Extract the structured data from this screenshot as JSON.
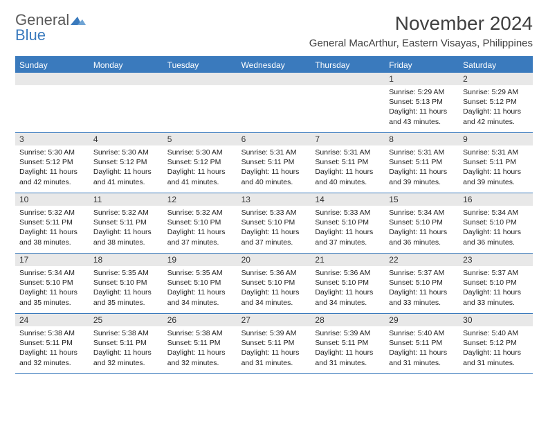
{
  "logo": {
    "text1": "General",
    "text2": "Blue"
  },
  "title": "November 2024",
  "subtitle": "General MacArthur, Eastern Visayas, Philippines",
  "day_header_bg": "#3a7abd",
  "day_header_fg": "#ffffff",
  "daynum_bg": "#e8e8e8",
  "border_color": "#3a7abd",
  "day_names": [
    "Sunday",
    "Monday",
    "Tuesday",
    "Wednesday",
    "Thursday",
    "Friday",
    "Saturday"
  ],
  "weeks": [
    [
      {
        "n": "",
        "empty": true
      },
      {
        "n": "",
        "empty": true
      },
      {
        "n": "",
        "empty": true
      },
      {
        "n": "",
        "empty": true
      },
      {
        "n": "",
        "empty": true
      },
      {
        "n": "1",
        "sunrise": "5:29 AM",
        "sunset": "5:13 PM",
        "daylight": "11 hours and 43 minutes."
      },
      {
        "n": "2",
        "sunrise": "5:29 AM",
        "sunset": "5:12 PM",
        "daylight": "11 hours and 42 minutes."
      }
    ],
    [
      {
        "n": "3",
        "sunrise": "5:30 AM",
        "sunset": "5:12 PM",
        "daylight": "11 hours and 42 minutes."
      },
      {
        "n": "4",
        "sunrise": "5:30 AM",
        "sunset": "5:12 PM",
        "daylight": "11 hours and 41 minutes."
      },
      {
        "n": "5",
        "sunrise": "5:30 AM",
        "sunset": "5:12 PM",
        "daylight": "11 hours and 41 minutes."
      },
      {
        "n": "6",
        "sunrise": "5:31 AM",
        "sunset": "5:11 PM",
        "daylight": "11 hours and 40 minutes."
      },
      {
        "n": "7",
        "sunrise": "5:31 AM",
        "sunset": "5:11 PM",
        "daylight": "11 hours and 40 minutes."
      },
      {
        "n": "8",
        "sunrise": "5:31 AM",
        "sunset": "5:11 PM",
        "daylight": "11 hours and 39 minutes."
      },
      {
        "n": "9",
        "sunrise": "5:31 AM",
        "sunset": "5:11 PM",
        "daylight": "11 hours and 39 minutes."
      }
    ],
    [
      {
        "n": "10",
        "sunrise": "5:32 AM",
        "sunset": "5:11 PM",
        "daylight": "11 hours and 38 minutes."
      },
      {
        "n": "11",
        "sunrise": "5:32 AM",
        "sunset": "5:11 PM",
        "daylight": "11 hours and 38 minutes."
      },
      {
        "n": "12",
        "sunrise": "5:32 AM",
        "sunset": "5:10 PM",
        "daylight": "11 hours and 37 minutes."
      },
      {
        "n": "13",
        "sunrise": "5:33 AM",
        "sunset": "5:10 PM",
        "daylight": "11 hours and 37 minutes."
      },
      {
        "n": "14",
        "sunrise": "5:33 AM",
        "sunset": "5:10 PM",
        "daylight": "11 hours and 37 minutes."
      },
      {
        "n": "15",
        "sunrise": "5:34 AM",
        "sunset": "5:10 PM",
        "daylight": "11 hours and 36 minutes."
      },
      {
        "n": "16",
        "sunrise": "5:34 AM",
        "sunset": "5:10 PM",
        "daylight": "11 hours and 36 minutes."
      }
    ],
    [
      {
        "n": "17",
        "sunrise": "5:34 AM",
        "sunset": "5:10 PM",
        "daylight": "11 hours and 35 minutes."
      },
      {
        "n": "18",
        "sunrise": "5:35 AM",
        "sunset": "5:10 PM",
        "daylight": "11 hours and 35 minutes."
      },
      {
        "n": "19",
        "sunrise": "5:35 AM",
        "sunset": "5:10 PM",
        "daylight": "11 hours and 34 minutes."
      },
      {
        "n": "20",
        "sunrise": "5:36 AM",
        "sunset": "5:10 PM",
        "daylight": "11 hours and 34 minutes."
      },
      {
        "n": "21",
        "sunrise": "5:36 AM",
        "sunset": "5:10 PM",
        "daylight": "11 hours and 34 minutes."
      },
      {
        "n": "22",
        "sunrise": "5:37 AM",
        "sunset": "5:10 PM",
        "daylight": "11 hours and 33 minutes."
      },
      {
        "n": "23",
        "sunrise": "5:37 AM",
        "sunset": "5:10 PM",
        "daylight": "11 hours and 33 minutes."
      }
    ],
    [
      {
        "n": "24",
        "sunrise": "5:38 AM",
        "sunset": "5:11 PM",
        "daylight": "11 hours and 32 minutes."
      },
      {
        "n": "25",
        "sunrise": "5:38 AM",
        "sunset": "5:11 PM",
        "daylight": "11 hours and 32 minutes."
      },
      {
        "n": "26",
        "sunrise": "5:38 AM",
        "sunset": "5:11 PM",
        "daylight": "11 hours and 32 minutes."
      },
      {
        "n": "27",
        "sunrise": "5:39 AM",
        "sunset": "5:11 PM",
        "daylight": "11 hours and 31 minutes."
      },
      {
        "n": "28",
        "sunrise": "5:39 AM",
        "sunset": "5:11 PM",
        "daylight": "11 hours and 31 minutes."
      },
      {
        "n": "29",
        "sunrise": "5:40 AM",
        "sunset": "5:11 PM",
        "daylight": "11 hours and 31 minutes."
      },
      {
        "n": "30",
        "sunrise": "5:40 AM",
        "sunset": "5:12 PM",
        "daylight": "11 hours and 31 minutes."
      }
    ]
  ],
  "labels": {
    "sunrise": "Sunrise:",
    "sunset": "Sunset:",
    "daylight": "Daylight:"
  }
}
